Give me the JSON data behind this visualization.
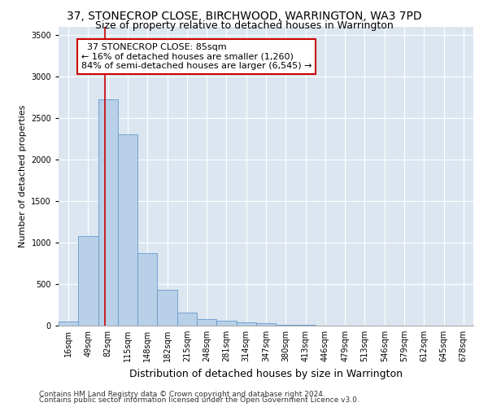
{
  "title": "37, STONECROP CLOSE, BIRCHWOOD, WARRINGTON, WA3 7PD",
  "subtitle": "Size of property relative to detached houses in Warrington",
  "xlabel": "Distribution of detached houses by size in Warrington",
  "ylabel": "Number of detached properties",
  "footer_line1": "Contains HM Land Registry data © Crown copyright and database right 2024.",
  "footer_line2": "Contains public sector information licensed under the Open Government Licence v3.0.",
  "bin_labels": [
    "16sqm",
    "49sqm",
    "82sqm",
    "115sqm",
    "148sqm",
    "182sqm",
    "215sqm",
    "248sqm",
    "281sqm",
    "314sqm",
    "347sqm",
    "380sqm",
    "413sqm",
    "446sqm",
    "479sqm",
    "513sqm",
    "546sqm",
    "579sqm",
    "612sqm",
    "645sqm",
    "678sqm"
  ],
  "bar_values": [
    50,
    1080,
    2720,
    2300,
    870,
    430,
    155,
    80,
    55,
    40,
    25,
    10,
    5,
    2,
    1,
    0,
    0,
    0,
    0,
    0,
    0
  ],
  "bar_color": "#b8d0e8",
  "bar_edge_color": "#6699cc",
  "vline_x_index": 2,
  "vline_color": "#cc0000",
  "ylim": [
    0,
    3600
  ],
  "yticks": [
    0,
    500,
    1000,
    1500,
    2000,
    2500,
    3000,
    3500
  ],
  "annotation_text": "  37 STONECROP CLOSE: 85sqm\n← 16% of detached houses are smaller (1,260)\n84% of semi-detached houses are larger (6,545) →",
  "annotation_box_facecolor": "#ffffff",
  "annotation_box_edgecolor": "#cc0000",
  "plot_bg_color": "#dce6f0",
  "grid_color": "#ffffff",
  "title_fontsize": 10,
  "subtitle_fontsize": 9,
  "ylabel_fontsize": 8,
  "xlabel_fontsize": 9,
  "tick_fontsize": 7,
  "annot_fontsize": 8,
  "footer_fontsize": 6.5
}
